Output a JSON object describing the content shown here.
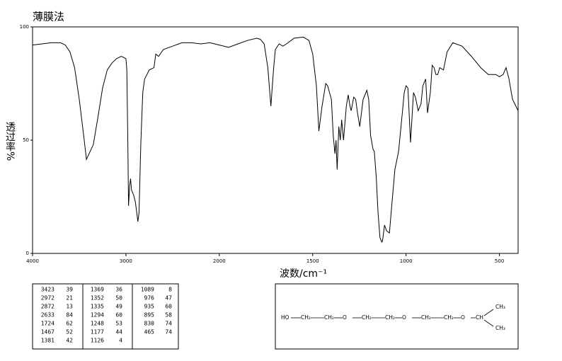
{
  "chart_data": {
    "type": "line",
    "title": "薄膜法",
    "xlabel": "波数/cm⁻¹",
    "ylabel": "透过率%",
    "x": [
      4000,
      3900,
      3800,
      3700,
      3650,
      3600,
      3550,
      3500,
      3450,
      3423,
      3350,
      3300,
      3250,
      3200,
      3150,
      3100,
      3050,
      3000,
      2990,
      2980,
      2972,
      2960,
      2950,
      2940,
      2920,
      2900,
      2890,
      2872,
      2860,
      2840,
      2820,
      2800,
      2750,
      2700,
      2680,
      2650,
      2633,
      2600,
      2500,
      2400,
      2300,
      2200,
      2100,
      2050,
      2000,
      1950,
      1900,
      1850,
      1800,
      1780,
      1760,
      1740,
      1724,
      1710,
      1700,
      1680,
      1660,
      1640,
      1600,
      1550,
      1520,
      1500,
      1480,
      1467,
      1450,
      1430,
      1420,
      1400,
      1390,
      1381,
      1375,
      1369,
      1360,
      1352,
      1345,
      1335,
      1320,
      1310,
      1300,
      1294,
      1280,
      1270,
      1260,
      1248,
      1230,
      1210,
      1200,
      1190,
      1177,
      1170,
      1160,
      1150,
      1140,
      1130,
      1126,
      1115,
      1105,
      1089,
      1080,
      1060,
      1040,
      1020,
      1010,
      1000,
      990,
      976,
      960,
      950,
      935,
      920,
      910,
      895,
      885,
      870,
      860,
      850,
      840,
      830,
      820,
      800,
      780,
      750,
      700,
      650,
      600,
      560,
      520,
      500,
      480,
      465,
      450,
      430,
      400
    ],
    "values": [
      92,
      92.5,
      93,
      93,
      92,
      89,
      82,
      68,
      51,
      41.5,
      48,
      60,
      73,
      81,
      84,
      86,
      87,
      86,
      81,
      49,
      21,
      30,
      33,
      28,
      26,
      23,
      20,
      14,
      18,
      49,
      71,
      77,
      81,
      82,
      88,
      87,
      88,
      90,
      91.5,
      93,
      93,
      92.5,
      93,
      92.5,
      92,
      91,
      92.5,
      94,
      95,
      94.5,
      92.5,
      82,
      65,
      81,
      90,
      92.5,
      91.5,
      92.5,
      95,
      95.5,
      94,
      88,
      74,
      54,
      65,
      75,
      74,
      68,
      52,
      44,
      50,
      37,
      56,
      50,
      59,
      50,
      65,
      70,
      65,
      63,
      69,
      68,
      62,
      56,
      68,
      72,
      68,
      52,
      46,
      45,
      34,
      18,
      7,
      5,
      5.5,
      12.5,
      10,
      9,
      18,
      37,
      45,
      62,
      71,
      74,
      73,
      49,
      71,
      69,
      63,
      66,
      74,
      77,
      62,
      71,
      83,
      82,
      79,
      79,
      82,
      81,
      89,
      93,
      91.5,
      87,
      82,
      79,
      79,
      78,
      79,
      82,
      77.5,
      68,
      63
    ],
    "color": "#000000",
    "xlim": [
      4000,
      400
    ],
    "x_break": 2000,
    "ylim": [
      0,
      100
    ],
    "xticks": [
      4000,
      3000,
      2000,
      1500,
      1000,
      500
    ],
    "yticks": [
      0,
      50,
      100
    ]
  },
  "peak_table": {
    "rows": [
      [
        3423,
        39,
        1369,
        36,
        1089,
        8
      ],
      [
        2972,
        21,
        1352,
        50,
        976,
        47
      ],
      [
        2872,
        13,
        1335,
        49,
        935,
        60
      ],
      [
        2633,
        84,
        1294,
        60,
        895,
        58
      ],
      [
        1724,
        62,
        1248,
        53,
        830,
        74
      ],
      [
        1467,
        52,
        1177,
        44,
        465,
        74
      ],
      [
        1381,
        42,
        1126,
        4
      ]
    ]
  },
  "structure": {
    "nodes": [
      {
        "label": "HO"
      },
      {
        "label": "CH₂"
      },
      {
        "label": "CH₂"
      },
      {
        "label": "O"
      },
      {
        "label": "CH₂"
      },
      {
        "label": "CH₂"
      },
      {
        "label": "O"
      },
      {
        "label": "CH₂"
      },
      {
        "label": "CH₂"
      },
      {
        "label": "O"
      },
      {
        "label": "CH"
      },
      {
        "label": "CH₃"
      },
      {
        "label": "CH₃"
      }
    ]
  }
}
